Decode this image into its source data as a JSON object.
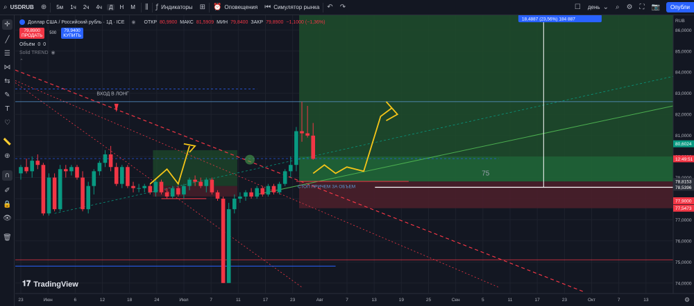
{
  "colors": {
    "background": "#131722",
    "grid": "#1e222d",
    "up": "#089981",
    "down": "#f23645",
    "axis_text": "#b2b5be",
    "profit_zone": "#1e4d2b",
    "loss_zone": "#4a1f2a",
    "annotation_yellow": "#f5c518",
    "accent_blue": "#2962ff"
  },
  "toolbar": {
    "symbol": "USDRUB",
    "intervals": [
      "5м",
      "1ч",
      "2ч",
      "4ч",
      "Д",
      "Н",
      "М"
    ],
    "active_interval": "Д",
    "indicators_label": "Индикаторы",
    "alerts_label": "Оповещения",
    "replay_label": "Симулятор рынка",
    "timeframe_label": "день",
    "publish_label": "Опубли"
  },
  "legend": {
    "title": "Доллар США / Российский рубль · 1Д · ICE",
    "open_label": "ОТКР",
    "open_value": "80,9900",
    "high_label": "МАКС",
    "high_value": "81,5909",
    "low_label": "МИН",
    "low_value": "79,8400",
    "close_label": "ЗАКР",
    "close_value": "79,8900",
    "change": "−1,1000 (−1,36%)",
    "sell_price": "79,8900",
    "sell_label": "ПРОДАТЬ",
    "spread": "500",
    "buy_price": "79,9400",
    "buy_label": "КУПИТЬ",
    "volume_label": "Объём",
    "volume_value": "0",
    "volume_value2": "0",
    "indicator_name": "Solid TREND"
  },
  "watermark": "TradingView",
  "chart_data": {
    "type": "candlestick",
    "currency_label": "RUB",
    "ylim": [
      73.5,
      86.7
    ],
    "y_ticks": [
      74,
      75,
      76,
      77,
      78,
      79,
      80,
      81,
      82,
      83,
      84,
      85,
      86
    ],
    "x_tick_labels": [
      "23",
      "Июн",
      "6",
      "12",
      "18",
      "24",
      "Июл",
      "7",
      "11",
      "17",
      "23",
      "Авг",
      "7",
      "13",
      "19",
      "25",
      "Сен",
      "5",
      "11",
      "17",
      "23",
      "Окт",
      "7",
      "13"
    ],
    "candles": [
      {
        "o": 79.2,
        "h": 79.6,
        "l": 78.9,
        "c": 79.5
      },
      {
        "o": 79.5,
        "h": 79.9,
        "l": 79.2,
        "c": 79.3
      },
      {
        "o": 79.3,
        "h": 80.0,
        "l": 79.0,
        "c": 79.8
      },
      {
        "o": 79.8,
        "h": 80.1,
        "l": 79.4,
        "c": 79.6
      },
      {
        "o": 79.6,
        "h": 79.7,
        "l": 77.2,
        "c": 77.3
      },
      {
        "o": 77.3,
        "h": 79.2,
        "l": 77.2,
        "c": 79.0
      },
      {
        "o": 79.0,
        "h": 79.2,
        "l": 77.4,
        "c": 77.5
      },
      {
        "o": 77.5,
        "h": 79.6,
        "l": 77.4,
        "c": 79.4
      },
      {
        "o": 79.4,
        "h": 79.6,
        "l": 79.0,
        "c": 79.3
      },
      {
        "o": 79.3,
        "h": 79.6,
        "l": 79.1,
        "c": 79.5
      },
      {
        "o": 79.5,
        "h": 79.6,
        "l": 78.9,
        "c": 79.0
      },
      {
        "o": 79.0,
        "h": 79.3,
        "l": 77.4,
        "c": 77.5
      },
      {
        "o": 77.5,
        "h": 78.8,
        "l": 77.3,
        "c": 78.6
      },
      {
        "o": 78.6,
        "h": 79.4,
        "l": 78.2,
        "c": 79.3
      },
      {
        "o": 79.3,
        "h": 79.8,
        "l": 79.1,
        "c": 79.7
      },
      {
        "o": 79.7,
        "h": 80.3,
        "l": 79.5,
        "c": 80.1
      },
      {
        "o": 80.1,
        "h": 80.5,
        "l": 79.3,
        "c": 79.5
      },
      {
        "o": 79.5,
        "h": 79.7,
        "l": 78.6,
        "c": 78.7
      },
      {
        "o": 78.7,
        "h": 79.6,
        "l": 78.5,
        "c": 79.5
      },
      {
        "o": 79.5,
        "h": 79.6,
        "l": 78.5,
        "c": 78.6
      },
      {
        "o": 78.6,
        "h": 78.8,
        "l": 78.3,
        "c": 78.5
      },
      {
        "o": 78.5,
        "h": 78.7,
        "l": 78.3,
        "c": 78.5
      },
      {
        "o": 78.5,
        "h": 78.7,
        "l": 78.3,
        "c": 78.6
      },
      {
        "o": 78.6,
        "h": 78.7,
        "l": 78.2,
        "c": 78.3
      },
      {
        "o": 78.3,
        "h": 78.9,
        "l": 78.1,
        "c": 78.8
      },
      {
        "o": 78.8,
        "h": 78.9,
        "l": 78.2,
        "c": 78.3
      },
      {
        "o": 78.3,
        "h": 78.5,
        "l": 78.0,
        "c": 78.1
      },
      {
        "o": 78.1,
        "h": 78.6,
        "l": 78.0,
        "c": 78.5
      },
      {
        "o": 78.5,
        "h": 78.6,
        "l": 78.1,
        "c": 78.2
      },
      {
        "o": 78.2,
        "h": 78.7,
        "l": 78.0,
        "c": 78.6
      },
      {
        "o": 78.6,
        "h": 79.0,
        "l": 78.4,
        "c": 78.9
      },
      {
        "o": 78.9,
        "h": 79.1,
        "l": 78.6,
        "c": 78.8
      },
      {
        "o": 78.8,
        "h": 79.0,
        "l": 78.5,
        "c": 78.6
      },
      {
        "o": 78.6,
        "h": 79.0,
        "l": 78.3,
        "c": 78.9
      },
      {
        "o": 78.9,
        "h": 79.0,
        "l": 78.2,
        "c": 78.3
      },
      {
        "o": 78.3,
        "h": 78.4,
        "l": 77.9,
        "c": 78.0
      },
      {
        "o": 78.0,
        "h": 78.1,
        "l": 74.0,
        "c": 74.0
      },
      {
        "o": 74.0,
        "h": 77.8,
        "l": 74.0,
        "c": 77.5
      },
      {
        "o": 77.5,
        "h": 78.2,
        "l": 77.3,
        "c": 78.0
      },
      {
        "o": 78.0,
        "h": 78.3,
        "l": 77.8,
        "c": 78.1
      },
      {
        "o": 78.1,
        "h": 78.4,
        "l": 77.9,
        "c": 78.3
      },
      {
        "o": 78.3,
        "h": 78.5,
        "l": 78.0,
        "c": 78.1
      },
      {
        "o": 78.1,
        "h": 78.6,
        "l": 78.0,
        "c": 78.5
      },
      {
        "o": 78.5,
        "h": 78.6,
        "l": 78.1,
        "c": 78.2
      },
      {
        "o": 78.2,
        "h": 78.7,
        "l": 78.1,
        "c": 78.6
      },
      {
        "o": 78.6,
        "h": 78.7,
        "l": 78.2,
        "c": 78.3
      },
      {
        "o": 78.3,
        "h": 78.8,
        "l": 78.2,
        "c": 78.7
      },
      {
        "o": 78.7,
        "h": 79.4,
        "l": 78.6,
        "c": 79.3
      },
      {
        "o": 79.3,
        "h": 80.0,
        "l": 79.0,
        "c": 79.6
      },
      {
        "o": 79.6,
        "h": 81.4,
        "l": 79.3,
        "c": 81.2
      },
      {
        "o": 81.2,
        "h": 82.6,
        "l": 80.7,
        "c": 81.1
      },
      {
        "o": 81.1,
        "h": 82.4,
        "l": 80.9,
        "c": 80.99
      },
      {
        "o": 80.99,
        "h": 81.59,
        "l": 79.84,
        "c": 79.89
      }
    ],
    "price_labels": [
      {
        "value": 80.6024,
        "text": "80,6024",
        "color": "#089981"
      },
      {
        "value": 79.89,
        "text": "12:49:51",
        "color": "#f23645"
      },
      {
        "value": 78.8153,
        "text": "78,8153",
        "color": "#2a2e39"
      },
      {
        "value": 78.5396,
        "text": "78,5396",
        "color": "#2a2e39"
      },
      {
        "value": 77.9,
        "text": "77,9000",
        "color": "#f23645"
      },
      {
        "value": 77.5473,
        "text": "77,5473",
        "color": "#f23645"
      }
    ],
    "position": {
      "entry": 78.8153,
      "target": 86.7,
      "stop": 77.5473,
      "measure_label": "18,4887 (23,56%) 184 887",
      "number_label": "75"
    },
    "annotations": {
      "entry_text": "ВХОД В ЛОНГ",
      "stop_text": "СТОП ПРИЧЕМ ЗА ОБЪЕМ"
    }
  }
}
